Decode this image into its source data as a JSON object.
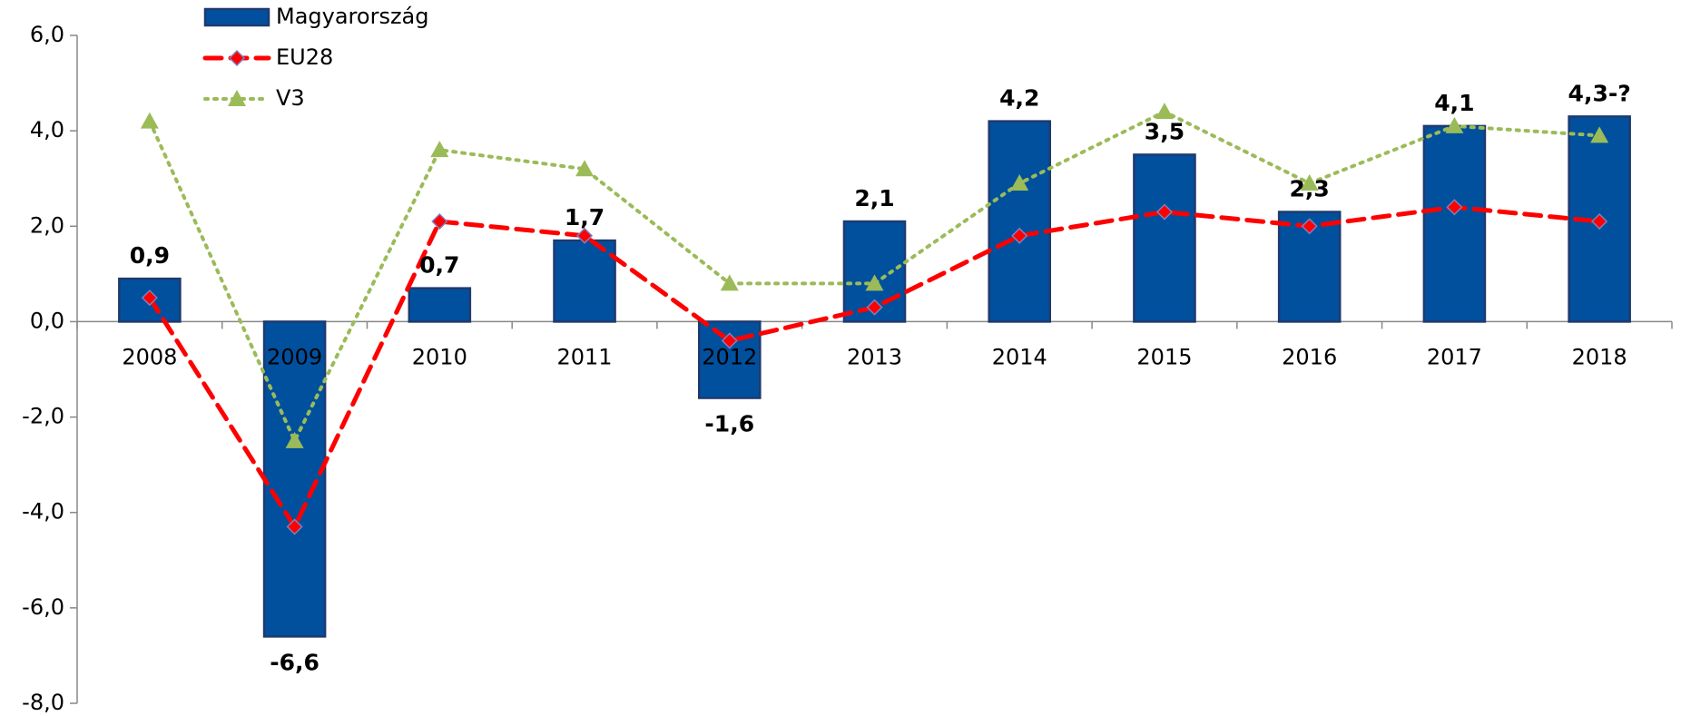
{
  "chart_data": {
    "type": "bar",
    "categories": [
      "2008",
      "2009",
      "2010",
      "2011",
      "2012",
      "2013",
      "2014",
      "2015",
      "2016",
      "2017",
      "2018"
    ],
    "series": [
      {
        "name": "Magyarország",
        "type": "bar",
        "color": "#00509e",
        "values": [
          0.9,
          -6.6,
          0.7,
          1.7,
          -1.6,
          2.1,
          4.2,
          3.5,
          2.3,
          4.1,
          4.3
        ],
        "value_labels": [
          "0,9",
          "-6,6",
          "0,7",
          "1,7",
          "-1,6",
          "2,1",
          "4,2",
          "3,5",
          "2,3",
          "4,1",
          "4,3-?"
        ]
      },
      {
        "name": "EU28",
        "type": "line",
        "color": "#ff0000",
        "marker": "diamond",
        "dash": "dashed",
        "values": [
          0.5,
          -4.3,
          2.1,
          1.8,
          -0.4,
          0.3,
          1.8,
          2.3,
          2.0,
          2.4,
          2.1
        ]
      },
      {
        "name": "V3",
        "type": "line",
        "color": "#9bbb59",
        "marker": "triangle",
        "dash": "dotted",
        "values": [
          4.2,
          -2.5,
          3.6,
          3.2,
          0.8,
          0.8,
          2.9,
          4.4,
          2.9,
          4.1,
          3.9
        ]
      }
    ],
    "ylim": [
      -8,
      6
    ],
    "yticks": [
      {
        "value": -8,
        "label": "-8,0"
      },
      {
        "value": -6,
        "label": "-6,0"
      },
      {
        "value": -4,
        "label": "-4,0"
      },
      {
        "value": -2,
        "label": "-2,0"
      },
      {
        "value": 0,
        "label": "0,0"
      },
      {
        "value": 2,
        "label": "2,0"
      },
      {
        "value": 4,
        "label": "4,0"
      },
      {
        "value": 6,
        "label": "6,0"
      }
    ],
    "grid": false,
    "legend": "top-left"
  }
}
